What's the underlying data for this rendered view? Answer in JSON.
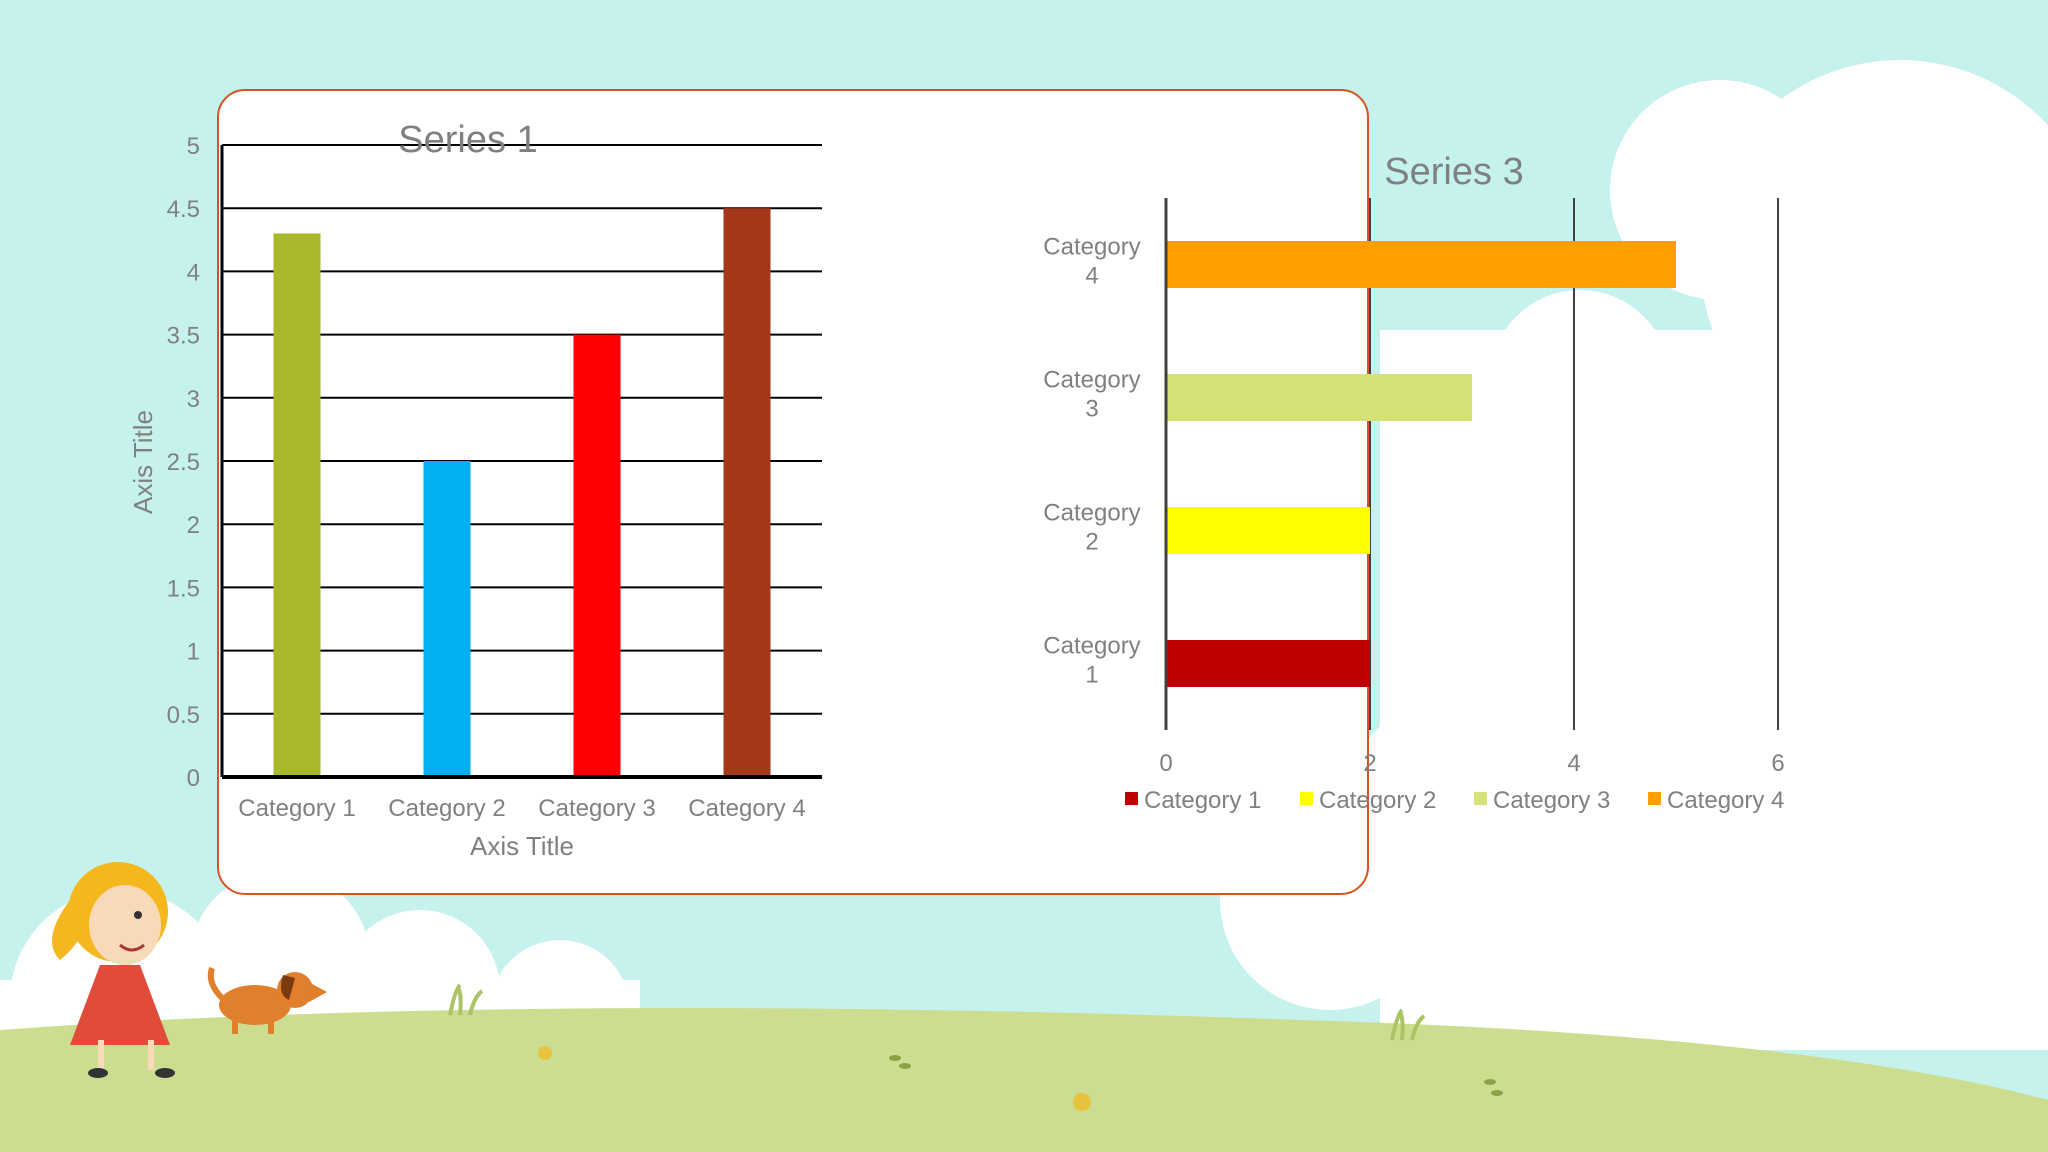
{
  "slide": {
    "background": {
      "sky": "#c6f2ee",
      "grass": "#cddd90",
      "card_border": "#d9531e"
    }
  },
  "chart_data": [
    {
      "type": "bar",
      "title": "Series 1",
      "categories": [
        "Category 1",
        "Category 2",
        "Category 3",
        "Category 4"
      ],
      "values": [
        4.3,
        2.5,
        3.5,
        4.5
      ],
      "colors": [
        "#a8b829",
        "#00b0f0",
        "#ff0000",
        "#a5371b"
      ],
      "xlabel": "Axis Title",
      "ylabel": "Axis Title",
      "ylim": [
        0,
        5
      ],
      "yticks": [
        "0",
        "0.5",
        "1",
        "1.5",
        "2",
        "2.5",
        "3",
        "3.5",
        "4",
        "4.5",
        "5"
      ],
      "grid": true,
      "legend": "none"
    },
    {
      "type": "bar",
      "orientation": "horizontal",
      "title": "Series 3",
      "categories": [
        [
          "Category",
          "1"
        ],
        [
          "Category",
          "2"
        ],
        [
          "Category",
          "3"
        ],
        [
          "Category",
          "4"
        ]
      ],
      "values": [
        2,
        2,
        3,
        5
      ],
      "colors": [
        "#c00000",
        "#ffff00",
        "#d4e277",
        "#ff9e00"
      ],
      "xlim": [
        0,
        6
      ],
      "xticks": [
        "0",
        "2",
        "4",
        "6"
      ],
      "grid": true,
      "legend": "bottom",
      "legend_entries": [
        "Category 1",
        "Category 2",
        "Category 3",
        "Category 4"
      ]
    }
  ]
}
